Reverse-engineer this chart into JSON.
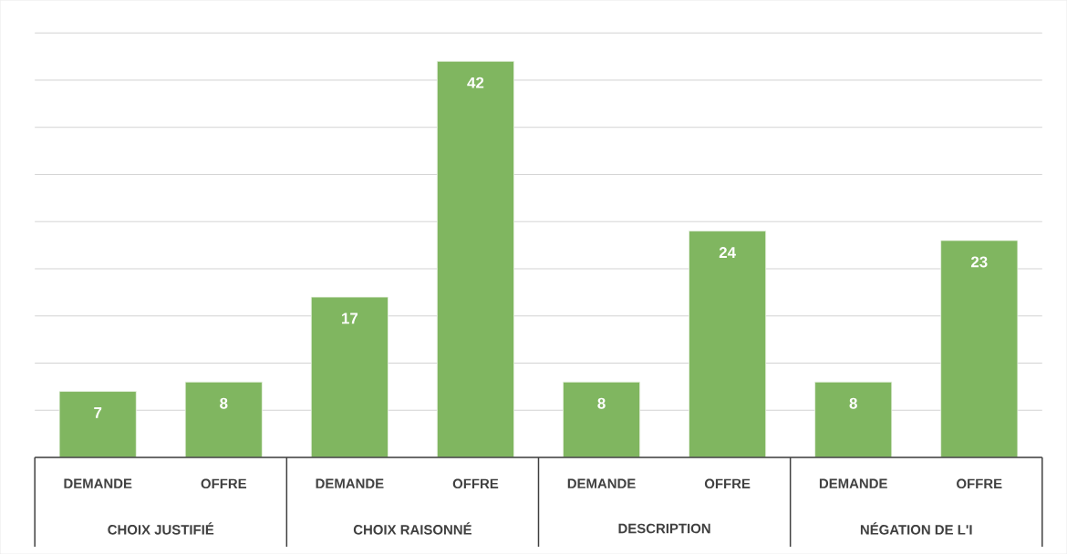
{
  "chart_data": {
    "type": "bar",
    "categories": [
      "DEMANDE",
      "OFFRE",
      "DEMANDE",
      "OFFRE",
      "DEMANDE",
      "OFFRE",
      "DEMANDE",
      "OFFRE"
    ],
    "values": [
      7,
      8,
      17,
      42,
      8,
      24,
      8,
      23
    ],
    "color": "#80b660",
    "annotations": [
      "CHOIX JUSTIFIÉ",
      "CHOIX RAISONNÉ",
      "DESCRIPTION",
      "NÉGATION DE L'I"
    ],
    "ylim": [
      0,
      45
    ],
    "yticks": [
      {
        "value": 0,
        "label": null
      },
      {
        "value": 5,
        "label": null
      },
      {
        "value": 10,
        "label": null
      },
      {
        "value": 15,
        "label": null
      },
      {
        "value": 20,
        "label": null
      },
      {
        "value": 25,
        "label": null
      },
      {
        "value": 30,
        "label": null
      },
      {
        "value": 35,
        "label": null
      },
      {
        "value": 40,
        "label": null
      },
      {
        "value": 45,
        "label": null
      }
    ],
    "grid": "y",
    "tick_labels": "x",
    "data_labels": true
  }
}
